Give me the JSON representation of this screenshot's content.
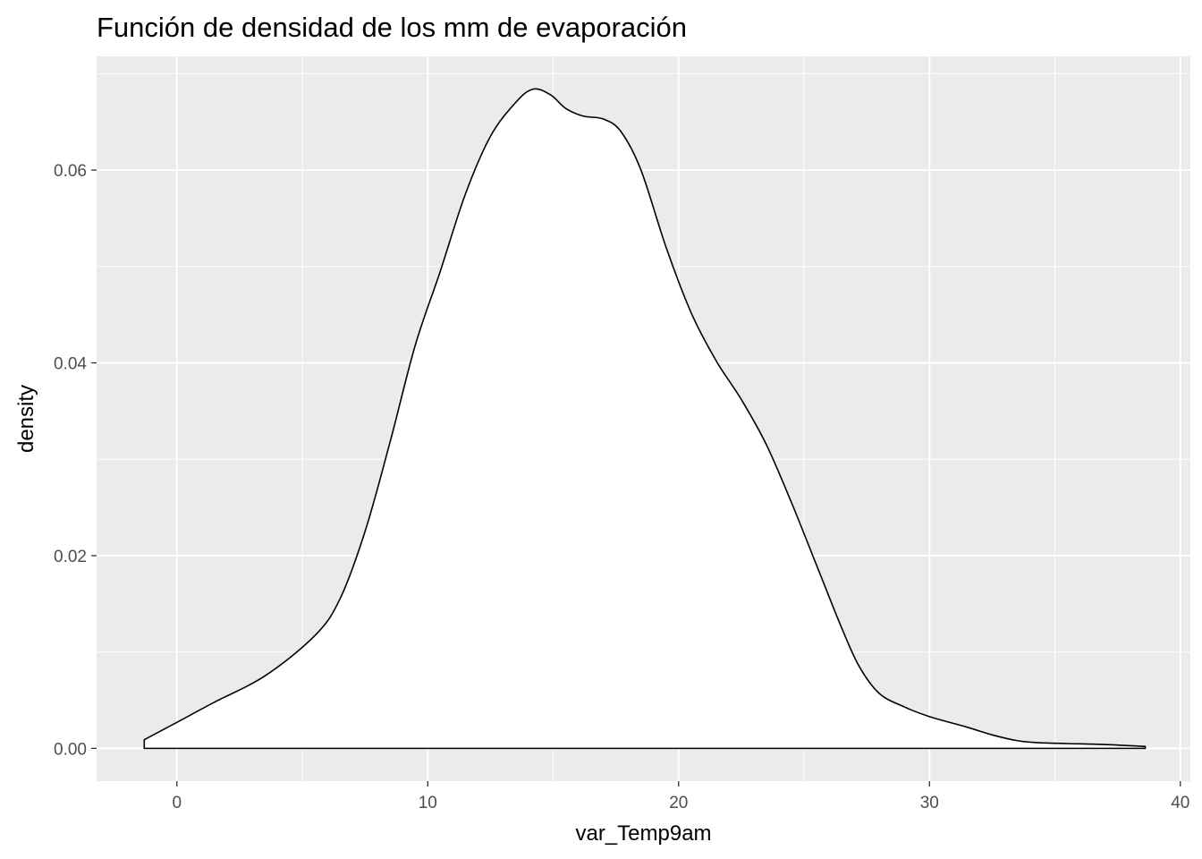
{
  "chart_data": {
    "type": "area",
    "title": "Función de densidad de los mm de evaporación",
    "xlabel": "var_Temp9am",
    "ylabel": "density",
    "xlim": [
      -3.2,
      40.4
    ],
    "ylim": [
      -0.0034,
      0.0718
    ],
    "x_ticks": [
      {
        "value": 0,
        "label": "0"
      },
      {
        "value": 10,
        "label": "10"
      },
      {
        "value": 20,
        "label": "20"
      },
      {
        "value": 30,
        "label": "30"
      },
      {
        "value": 40,
        "label": "40"
      }
    ],
    "y_ticks": [
      {
        "value": 0,
        "label": "0.00"
      },
      {
        "value": 0.02,
        "label": "0.02"
      },
      {
        "value": 0.04,
        "label": "0.04"
      },
      {
        "value": 0.06,
        "label": "0.06"
      }
    ],
    "grid": true,
    "colors": {
      "panel_background": "#ebebeb",
      "grid": "#ffffff",
      "fill": "#ffffff",
      "line": "#000000",
      "tick_text": "#4d4d4d"
    },
    "x": [
      -1.3,
      0,
      1.5,
      3.5,
      5.5,
      6.5,
      7.5,
      8.5,
      9.5,
      10.5,
      11.5,
      12.5,
      13.5,
      14.2,
      14.9,
      15.5,
      16.2,
      17,
      17.7,
      18.5,
      19.5,
      20.5,
      21.5,
      22.5,
      23.5,
      24.5,
      25.5,
      26.5,
      27.2,
      28,
      29,
      30,
      31.5,
      32.5,
      33.5,
      34.3,
      35.5,
      37,
      38.6
    ],
    "y": [
      0.0009,
      0.0027,
      0.0048,
      0.0075,
      0.0117,
      0.0155,
      0.0225,
      0.0318,
      0.0418,
      0.0495,
      0.0575,
      0.0635,
      0.067,
      0.0684,
      0.0678,
      0.0664,
      0.0656,
      0.0653,
      0.064,
      0.06,
      0.052,
      0.0452,
      0.0402,
      0.0362,
      0.0315,
      0.0255,
      0.019,
      0.0125,
      0.0085,
      0.0057,
      0.0043,
      0.0033,
      0.0022,
      0.0014,
      0.0008,
      0.0006,
      0.0005,
      0.0004,
      0.0002
    ]
  }
}
